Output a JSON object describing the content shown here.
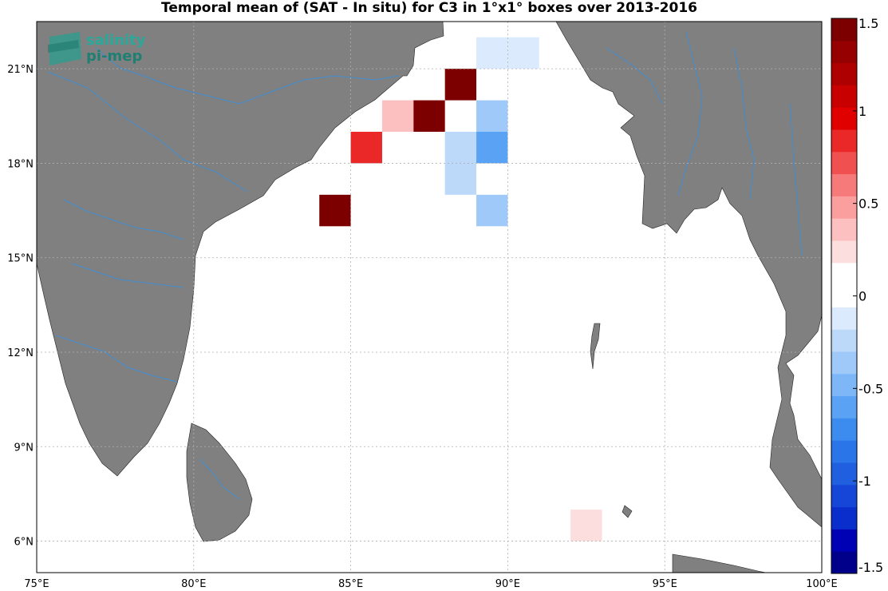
{
  "title": "Temporal mean of (SAT - In situ) for C3 in 1°x1° boxes over 2013-2016",
  "logo": {
    "line1": "salinity",
    "line2": "pi-mep"
  },
  "chart_data": {
    "type": "heatmap",
    "title": "Temporal mean of (SAT - In situ) for C3 in 1°x1° boxes over 2013-2016",
    "lon_range": [
      75,
      100
    ],
    "lat_range": [
      5,
      22.5
    ],
    "x_ticks": [
      75,
      80,
      85,
      90,
      95,
      100
    ],
    "x_tick_labels": [
      "75°E",
      "80°E",
      "85°E",
      "90°E",
      "95°E",
      "100°E"
    ],
    "y_ticks": [
      6,
      9,
      12,
      15,
      18,
      21
    ],
    "y_tick_labels": [
      "6°N",
      "9°N",
      "12°N",
      "15°N",
      "18°N",
      "21°N"
    ],
    "grid": true,
    "colorbar": {
      "range": [
        -1.5,
        1.5
      ],
      "ticks": [
        -1.5,
        -1,
        -0.5,
        0,
        0.5,
        1,
        1.5
      ],
      "tick_labels": [
        "-1.5",
        "-1",
        "-0.5",
        "0",
        "0.5",
        "1",
        "1.5"
      ],
      "colors": [
        "#00008b",
        "#0000b4",
        "#0a2ecc",
        "#1546d8",
        "#1f5fe0",
        "#2a75e8",
        "#3c8cf0",
        "#5aa2f4",
        "#7db7f7",
        "#9fc9f8",
        "#bcd9fa",
        "#dbeafc",
        "#ffffff",
        "#ffffff",
        "#fcdede",
        "#fcc0c0",
        "#fa9e9e",
        "#f77a7a",
        "#f05050",
        "#ea2828",
        "#e00000",
        "#c80000",
        "#ae0000",
        "#960000",
        "#7d0000"
      ]
    },
    "boxes": [
      {
        "lon": 89,
        "lat": 21,
        "value": -0.1
      },
      {
        "lon": 90,
        "lat": 21,
        "value": -0.1
      },
      {
        "lon": 88,
        "lat": 20,
        "value": 1.5
      },
      {
        "lon": 86,
        "lat": 19,
        "value": 0.35
      },
      {
        "lon": 87,
        "lat": 19,
        "value": 1.5
      },
      {
        "lon": 89,
        "lat": 19,
        "value": -0.4
      },
      {
        "lon": 85,
        "lat": 18,
        "value": 0.8
      },
      {
        "lon": 88,
        "lat": 18,
        "value": -0.3
      },
      {
        "lon": 89,
        "lat": 18,
        "value": -0.55
      },
      {
        "lon": 88,
        "lat": 17,
        "value": -0.3
      },
      {
        "lon": 84,
        "lat": 16,
        "value": 1.5
      },
      {
        "lon": 89,
        "lat": 16,
        "value": -0.35
      },
      {
        "lon": 88,
        "lat": 15,
        "value": 0.1
      },
      {
        "lon": 92,
        "lat": 6,
        "value": 0.2
      }
    ]
  }
}
